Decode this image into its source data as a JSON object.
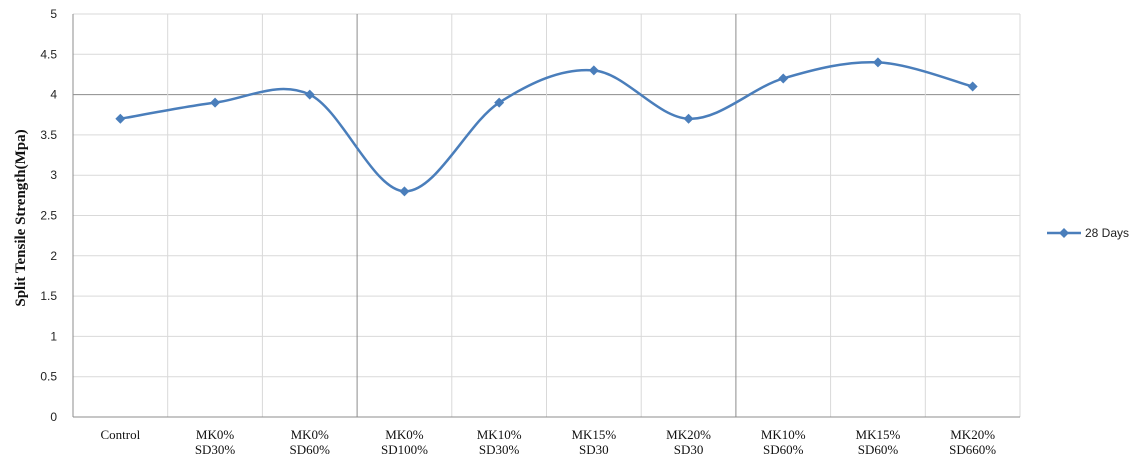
{
  "chart_data": {
    "type": "line",
    "categories": [
      "Control",
      "MK0% SD30%",
      "MK0% SD60%",
      "MK0% SD100%",
      "MK10% SD30%",
      "MK15% SD30",
      "MK20% SD30",
      "MK10% SD60%",
      "MK15% SD60%",
      "MK20% SD660%"
    ],
    "category_lines": [
      [
        "Control"
      ],
      [
        "MK0%",
        "SD30%"
      ],
      [
        "MK0%",
        "SD60%"
      ],
      [
        "MK0%",
        "SD100%"
      ],
      [
        "MK10%",
        "SD30%"
      ],
      [
        "MK15%",
        "SD30"
      ],
      [
        "MK20%",
        "SD30"
      ],
      [
        "MK10%",
        "SD60%"
      ],
      [
        "MK15%",
        "SD60%"
      ],
      [
        "MK20%",
        "SD660%"
      ]
    ],
    "series": [
      {
        "name": "28 Days",
        "values": [
          3.7,
          3.9,
          4.0,
          2.8,
          3.9,
          4.3,
          3.7,
          4.2,
          4.4,
          4.1
        ],
        "color": "#4a7ebb"
      }
    ],
    "title": "",
    "xlabel": "",
    "ylabel": "Split Tensile Strength(Mpa)",
    "ylim": [
      0,
      5
    ],
    "yticks": [
      "0",
      "0.5",
      "1",
      "1.5",
      "2",
      "2.5",
      "3",
      "3.5",
      "4",
      "4.5",
      "5"
    ],
    "grid": true,
    "smooth": true,
    "marker": "diamond",
    "legend": "right"
  }
}
